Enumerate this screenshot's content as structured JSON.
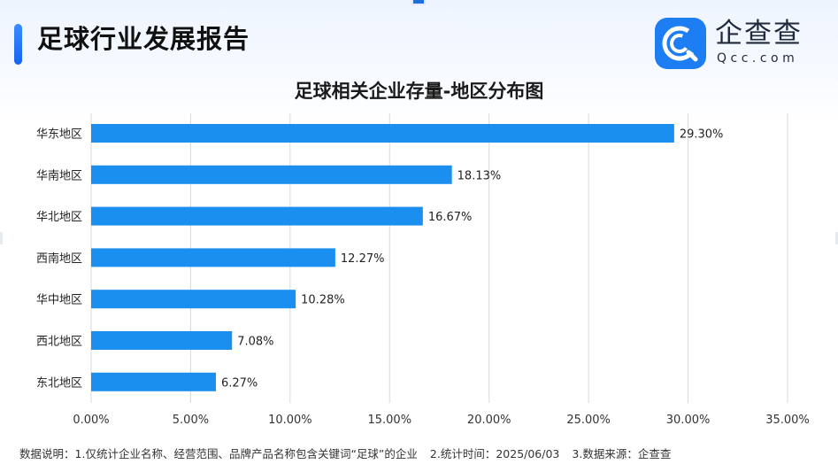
{
  "header": {
    "title": "足球行业发展报告"
  },
  "logo": {
    "name": "企查查",
    "domain": "Qcc.com",
    "icon": "qcc-logo-icon",
    "color": "#1d7df2"
  },
  "colors": {
    "bar": "#1a8ff0",
    "accent": "#1d6fe0",
    "grid": "#d9d9d9"
  },
  "chart_data": {
    "type": "bar",
    "orientation": "horizontal",
    "title": "足球相关企业存量-地区分布图",
    "categories": [
      "华东地区",
      "华南地区",
      "华北地区",
      "西南地区",
      "华中地区",
      "西北地区",
      "东北地区"
    ],
    "values": [
      29.3,
      18.13,
      16.67,
      12.27,
      10.28,
      7.08,
      6.27
    ],
    "value_labels": [
      "29.30%",
      "18.13%",
      "16.67%",
      "12.27%",
      "10.28%",
      "7.08%",
      "6.27%"
    ],
    "x_ticks": [
      0,
      5,
      10,
      15,
      20,
      25,
      30,
      35
    ],
    "x_tick_labels": [
      "0.00%",
      "5.00%",
      "10.00%",
      "15.00%",
      "20.00%",
      "25.00%",
      "30.00%",
      "35.00%"
    ],
    "xlim": [
      0,
      35
    ],
    "grid": "vertical",
    "legend": "none"
  },
  "footnote": {
    "label": "数据说明：",
    "item1": "1.仅统计企业名称、经营范围、品牌产品名称包含关键词“足球”的企业",
    "item2": "2.统计时间：2025/06/03",
    "item3": "3.数据来源：企查查"
  }
}
